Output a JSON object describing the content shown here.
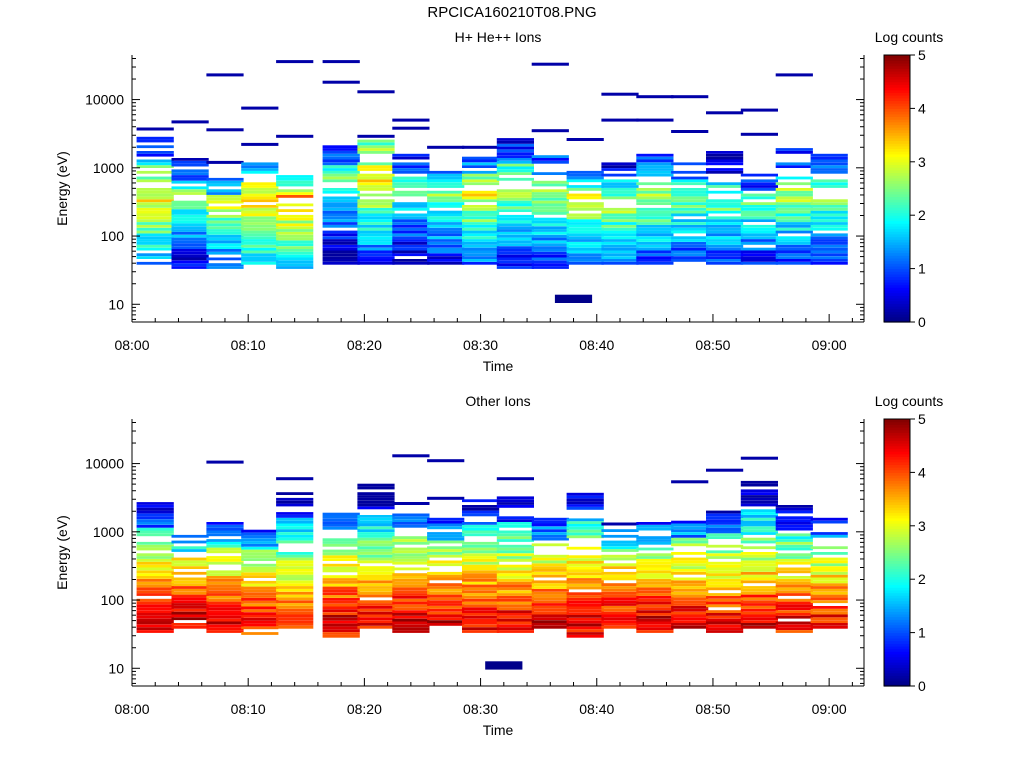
{
  "figure": {
    "title": "RPCICA160210T08.PNG"
  },
  "chart_data": [
    {
      "type": "heatmap",
      "title": "H+ He++ Ions",
      "xlabel": "Time",
      "ylabel": "Energy (eV)",
      "x_ticks": [
        "08:00",
        "08:10",
        "08:20",
        "08:30",
        "08:40",
        "08:50",
        "09:00"
      ],
      "x_range": [
        "08:00",
        "09:03"
      ],
      "y_scale": "log",
      "y_ticks": [
        10,
        100,
        1000,
        10000
      ],
      "y_range": [
        5.5,
        45000
      ],
      "colorbar": {
        "label": "Log counts",
        "ticks": [
          0,
          1,
          2,
          3,
          4,
          5
        ],
        "range": [
          0,
          5
        ]
      },
      "time_bins": [
        "08:02",
        "08:05",
        "08:08",
        "08:11",
        "08:14",
        "08:18",
        "08:21",
        "08:24",
        "08:27",
        "08:30",
        "08:33",
        "08:36",
        "08:39",
        "08:42",
        "08:45",
        "08:48",
        "08:51",
        "08:54",
        "08:57",
        "09:00"
      ],
      "time_bin_width_min": 3.2,
      "columns": [
        {
          "lo": 38,
          "hi": 2600,
          "peak_energy": 340,
          "peak_level": 3.1,
          "sparse": [
            3700
          ]
        },
        {
          "lo": 33,
          "hi": 1300,
          "peak_energy": 400,
          "peak_level": 2.4,
          "sparse": [
            4700
          ]
        },
        {
          "lo": 33,
          "hi": 700,
          "peak_energy": 300,
          "peak_level": 2.8,
          "sparse": [
            1200,
            3600,
            23000
          ]
        },
        {
          "lo": 38,
          "hi": 1100,
          "peak_energy": 350,
          "peak_level": 3.4,
          "sparse": [
            2200,
            7500
          ]
        },
        {
          "lo": 33,
          "hi": 800,
          "peak_energy": 380,
          "peak_level": 3.6,
          "sparse": [
            2900,
            36000
          ]
        },
        {
          "lo": 38,
          "hi": 2400,
          "peak_energy": 750,
          "peak_level": 2.4,
          "sparse": [
            18000,
            36000
          ]
        },
        {
          "lo": 38,
          "hi": 2400,
          "peak_energy": 1300,
          "peak_level": 3.7,
          "sparse": [
            2900,
            13000
          ]
        },
        {
          "lo": 38,
          "hi": 1500,
          "peak_energy": 600,
          "peak_level": 2.4,
          "sparse": [
            3800,
            5000
          ]
        },
        {
          "lo": 38,
          "hi": 900,
          "peak_energy": 500,
          "peak_level": 2.7,
          "sparse": [
            2000
          ]
        },
        {
          "lo": 38,
          "hi": 1600,
          "peak_energy": 400,
          "peak_level": 3.0,
          "sparse": [
            2000
          ]
        },
        {
          "lo": 33,
          "hi": 2600,
          "peak_energy": 500,
          "peak_level": 2.8,
          "sparse": []
        },
        {
          "lo": 33,
          "hi": 1500,
          "peak_energy": 450,
          "peak_level": 2.8,
          "sparse": [
            3500,
            33000
          ]
        },
        {
          "lo": 38,
          "hi": 900,
          "peak_energy": 350,
          "peak_level": 2.9,
          "sparse": [
            2600
          ]
        },
        {
          "lo": 38,
          "hi": 1300,
          "peak_energy": 250,
          "peak_level": 2.6,
          "sparse": [
            5000,
            12000
          ]
        },
        {
          "lo": 38,
          "hi": 1500,
          "peak_energy": 400,
          "peak_level": 2.8,
          "sparse": [
            5000,
            11000
          ]
        },
        {
          "lo": 38,
          "hi": 1200,
          "peak_energy": 350,
          "peak_level": 2.5,
          "sparse": [
            3400,
            11000
          ]
        },
        {
          "lo": 38,
          "hi": 1700,
          "peak_energy": 300,
          "peak_level": 2.4,
          "sparse": [
            6400
          ]
        },
        {
          "lo": 38,
          "hi": 800,
          "peak_energy": 300,
          "peak_level": 2.3,
          "sparse": [
            3100,
            7000
          ]
        },
        {
          "lo": 38,
          "hi": 2000,
          "peak_energy": 400,
          "peak_level": 2.7,
          "sparse": [
            23000
          ]
        },
        {
          "lo": 38,
          "hi": 1500,
          "peak_energy": 400,
          "peak_level": 2.6,
          "sparse": []
        }
      ],
      "isolated": [
        {
          "time": "08:38",
          "energy": 12,
          "level": 0.05
        }
      ]
    },
    {
      "type": "heatmap",
      "title": "Other Ions",
      "xlabel": "Time",
      "ylabel": "Energy (eV)",
      "x_ticks": [
        "08:00",
        "08:10",
        "08:20",
        "08:30",
        "08:40",
        "08:50",
        "09:00"
      ],
      "x_range": [
        "08:00",
        "09:03"
      ],
      "y_scale": "log",
      "y_ticks": [
        10,
        100,
        1000,
        10000
      ],
      "y_range": [
        5.5,
        45000
      ],
      "colorbar": {
        "label": "Log counts",
        "ticks": [
          0,
          1,
          2,
          3,
          4,
          5
        ],
        "range": [
          0,
          5
        ]
      },
      "time_bins": [
        "08:02",
        "08:05",
        "08:08",
        "08:11",
        "08:14",
        "08:18",
        "08:21",
        "08:24",
        "08:27",
        "08:30",
        "08:33",
        "08:36",
        "08:39",
        "08:42",
        "08:45",
        "08:48",
        "08:51",
        "08:54",
        "08:57",
        "09:00"
      ],
      "time_bin_width_min": 3.2,
      "columns": [
        {
          "lo": 33,
          "hi": 2600,
          "peak_energy": 50,
          "peak_level": 4.6,
          "sparse": []
        },
        {
          "lo": 38,
          "hi": 900,
          "peak_energy": 50,
          "peak_level": 4.7,
          "sparse": []
        },
        {
          "lo": 33,
          "hi": 1300,
          "peak_energy": 50,
          "peak_level": 4.5,
          "sparse": [
            10500
          ]
        },
        {
          "lo": 28,
          "hi": 1000,
          "peak_energy": 50,
          "peak_level": 4.4,
          "sparse": []
        },
        {
          "lo": 38,
          "hi": 3800,
          "peak_energy": 50,
          "peak_level": 4.3,
          "sparse": [
            6000
          ]
        },
        {
          "lo": 28,
          "hi": 2000,
          "peak_energy": 50,
          "peak_level": 4.6,
          "sparse": []
        },
        {
          "lo": 38,
          "hi": 4800,
          "peak_energy": 50,
          "peak_level": 4.5,
          "sparse": []
        },
        {
          "lo": 33,
          "hi": 2000,
          "peak_energy": 50,
          "peak_level": 4.7,
          "sparse": [
            2600,
            13000
          ]
        },
        {
          "lo": 38,
          "hi": 1500,
          "peak_energy": 50,
          "peak_level": 4.6,
          "sparse": [
            3100,
            11000
          ]
        },
        {
          "lo": 33,
          "hi": 2900,
          "peak_energy": 50,
          "peak_level": 4.6,
          "sparse": []
        },
        {
          "lo": 33,
          "hi": 3100,
          "peak_energy": 50,
          "peak_level": 4.5,
          "sparse": [
            6000
          ]
        },
        {
          "lo": 38,
          "hi": 1500,
          "peak_energy": 50,
          "peak_level": 4.6,
          "sparse": []
        },
        {
          "lo": 28,
          "hi": 3500,
          "peak_energy": 50,
          "peak_level": 4.7,
          "sparse": []
        },
        {
          "lo": 38,
          "hi": 1000,
          "peak_energy": 50,
          "peak_level": 4.6,
          "sparse": [
            1300
          ]
        },
        {
          "lo": 33,
          "hi": 1300,
          "peak_energy": 50,
          "peak_level": 4.6,
          "sparse": []
        },
        {
          "lo": 38,
          "hi": 1600,
          "peak_energy": 50,
          "peak_level": 4.6,
          "sparse": [
            5400
          ]
        },
        {
          "lo": 33,
          "hi": 2000,
          "peak_energy": 50,
          "peak_level": 4.5,
          "sparse": [
            8000
          ]
        },
        {
          "lo": 38,
          "hi": 5500,
          "peak_energy": 50,
          "peak_level": 4.6,
          "sparse": [
            12000
          ]
        },
        {
          "lo": 33,
          "hi": 2300,
          "peak_energy": 50,
          "peak_level": 4.5,
          "sparse": []
        },
        {
          "lo": 38,
          "hi": 1500,
          "peak_energy": 50,
          "peak_level": 4.4,
          "sparse": []
        }
      ],
      "isolated": [
        {
          "time": "08:32",
          "energy": 11,
          "level": 0.05
        }
      ]
    }
  ]
}
